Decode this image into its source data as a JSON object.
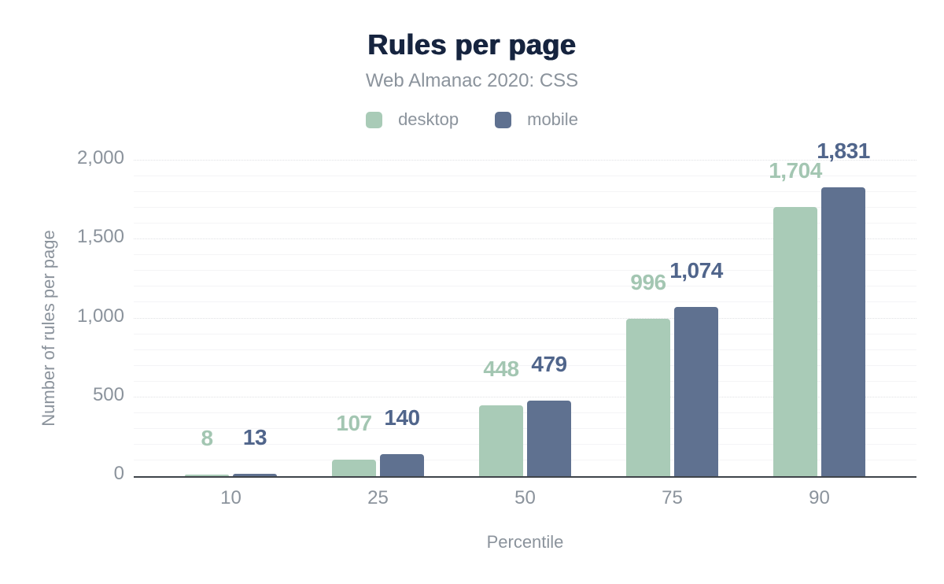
{
  "chart": {
    "title": "Rules per page",
    "subtitle": "Web Almanac 2020: CSS",
    "x_axis_title": "Percentile",
    "y_axis_title": "Number of rules per page"
  },
  "colors": {
    "background": "#ffffff",
    "title": "#16243f",
    "muted_text": "#8b939c",
    "axis_line": "#3f444a",
    "major_gridline": "#e0e1e4",
    "minor_gridline": "#f4f4f6",
    "desktop": "#a9cbb7",
    "desktop_label": "#a3c6b2",
    "mobile": "#5f7190",
    "mobile_label": "#50658b"
  },
  "chart_data": {
    "type": "bar",
    "title": "Rules per page",
    "subtitle": "Web Almanac 2020: CSS",
    "xlabel": "Percentile",
    "ylabel": "Number of rules per page",
    "categories": [
      "10",
      "25",
      "50",
      "75",
      "90"
    ],
    "series": [
      {
        "name": "desktop",
        "color": "#a9cbb7",
        "label_color": "#a3c6b2",
        "values": [
          8,
          107,
          448,
          996,
          1704
        ],
        "labels": [
          "8",
          "107",
          "448",
          "996",
          "1,704"
        ]
      },
      {
        "name": "mobile",
        "color": "#5f7190",
        "label_color": "#50658b",
        "values": [
          13,
          140,
          479,
          1074,
          1831
        ],
        "labels": [
          "13",
          "140",
          "479",
          "1,074",
          "1,831"
        ]
      }
    ],
    "y_axis": {
      "min": 0,
      "max": 2000,
      "minor_step": 100,
      "major_step": 500,
      "ticks": [
        {
          "value": 0,
          "label": "0"
        },
        {
          "value": 500,
          "label": "500"
        },
        {
          "value": 1000,
          "label": "1,000"
        },
        {
          "value": 1500,
          "label": "1,500"
        },
        {
          "value": 2000,
          "label": "2,000"
        }
      ]
    },
    "legend_position": "top",
    "grid": true,
    "data_labels": true
  }
}
